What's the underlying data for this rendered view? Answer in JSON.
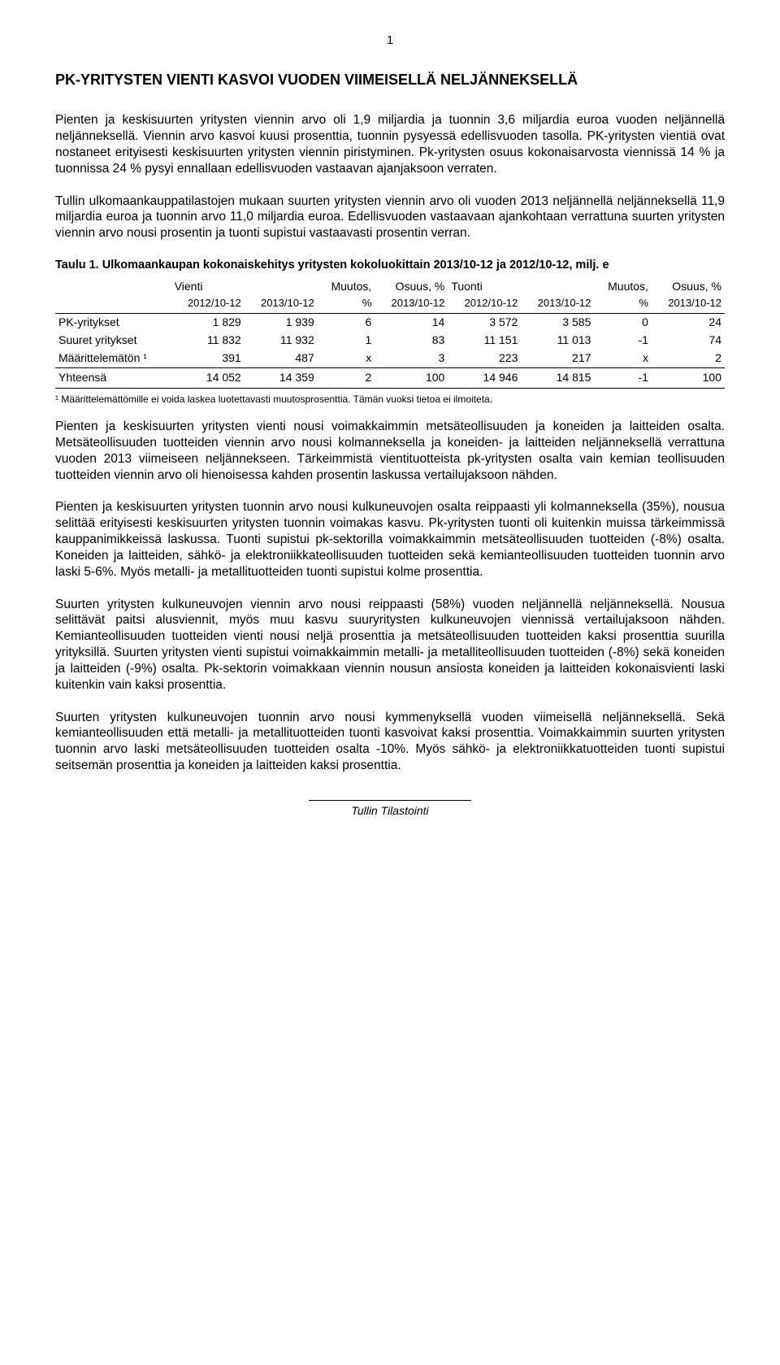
{
  "page_number": "1",
  "title": "PK-YRITYSTEN VIENTI KASVOI VUODEN VIIMEISELLÄ NELJÄNNEKSELLÄ",
  "p1": "Pienten ja keskisuurten yritysten viennin arvo oli 1,9 miljardia ja tuonnin 3,6 miljardia euroa vuoden neljännellä neljänneksellä. Viennin arvo kasvoi kuusi prosenttia, tuonnin pysyessä edellisvuoden tasolla. PK-yritysten vientiä ovat nostaneet erityisesti keskisuurten yritysten viennin piristyminen. Pk-yritysten osuus kokonaisarvosta viennissä 14 % ja tuonnissa 24 % pysyi ennallaan edellisvuoden vastaavan ajanjaksoon verraten.",
  "p2": "Tullin ulkomaankauppatilastojen mukaan suurten yritysten viennin arvo oli vuoden 2013 neljännellä neljänneksellä 11,9 miljardia euroa ja tuonnin arvo 11,0 miljardia euroa. Edellisvuoden vastaavaan ajankohtaan verrattuna suurten yritysten viennin arvo nousi prosentin ja tuonti supistui vastaavasti prosentin verran.",
  "table": {
    "title": "Taulu 1. Ulkomaankaupan kokonaiskehitys yritysten kokoluokittain 2013/10-12 ja 2012/10-12, milj. e",
    "group_headers": [
      "",
      "Vienti",
      "",
      "Muutos,",
      "Osuus, %",
      "Tuonti",
      "",
      "Muutos,",
      "Osuus, %"
    ],
    "sub_headers": [
      "",
      "2012/10-12",
      "2013/10-12",
      "%",
      "2013/10-12",
      "2012/10-12",
      "2013/10-12",
      "%",
      "2013/10-12"
    ],
    "rows": [
      [
        "PK-yritykset",
        "1 829",
        "1 939",
        "6",
        "14",
        "3 572",
        "3 585",
        "0",
        "24"
      ],
      [
        "Suuret yritykset",
        "11 832",
        "11 932",
        "1",
        "83",
        "11 151",
        "11 013",
        "-1",
        "74"
      ],
      [
        "Määrittelemätön ¹",
        "391",
        "487",
        "x",
        "3",
        "223",
        "217",
        "x",
        "2"
      ],
      [
        "Yhteensä",
        "14 052",
        "14 359",
        "2",
        "100",
        "14 946",
        "14 815",
        "-1",
        "100"
      ]
    ]
  },
  "footnote": "¹ Määrittelemättömille ei voida laskea luotettavasti muutosprosenttia. Tämän vuoksi tietoa ei ilmoiteta.",
  "p3": "Pienten ja keskisuurten yritysten vienti nousi voimakkaimmin metsäteollisuuden ja koneiden ja laitteiden osalta. Metsäteollisuuden tuotteiden viennin arvo nousi kolmanneksella ja koneiden- ja laitteiden neljänneksellä verrattuna vuoden 2013 viimeiseen neljännekseen. Tärkeimmistä vientituotteista pk-yritysten osalta vain kemian teollisuuden tuotteiden viennin arvo oli hienoisessa kahden prosentin laskussa vertailujaksoon nähden.",
  "p4": "Pienten ja keskisuurten yritysten tuonnin arvo nousi kulkuneuvojen osalta reippaasti yli kolmanneksella (35%), nousua selittää erityisesti keskisuurten yritysten tuonnin voimakas kasvu. Pk-yritysten tuonti oli kuitenkin muissa tärkeimmissä kauppanimikkeissä laskussa. Tuonti supistui pk-sektorilla voimakkaimmin metsäteollisuuden tuotteiden (-8%) osalta. Koneiden ja laitteiden, sähkö- ja elektroniikkateollisuuden tuotteiden sekä kemianteollisuuden tuotteiden tuonnin arvo laski 5-6%. Myös metalli- ja metallituotteiden tuonti supistui kolme prosenttia.",
  "p5": "Suurten yritysten kulkuneuvojen viennin arvo nousi reippaasti (58%) vuoden neljännellä neljänneksellä. Nousua selittävät paitsi alusviennit, myös muu kasvu suuryritysten kulkuneuvojen viennissä vertailujaksoon nähden. Kemianteollisuuden tuotteiden vienti nousi neljä prosenttia ja metsäteollisuuden tuotteiden kaksi prosenttia suurilla yrityksillä. Suurten yritysten vienti supistui voimakkaimmin metalli- ja metalliteollisuuden tuotteiden (-8%) sekä koneiden ja laitteiden (-9%) osalta. Pk-sektorin voimakkaan viennin nousun ansiosta koneiden ja laitteiden kokonaisvienti laski kuitenkin vain kaksi prosenttia.",
  "p6": "Suurten yritysten kulkuneuvojen tuonnin arvo nousi kymmenyksellä vuoden viimeisellä neljänneksellä. Sekä kemianteollisuuden että metalli- ja metallituotteiden tuonti kasvoivat kaksi prosenttia. Voimakkaimmin suurten yritysten tuonnin arvo laski metsäteollisuuden tuotteiden osalta -10%. Myös sähkö- ja elektroniikkatuotteiden tuonti supistui seitsemän prosenttia ja koneiden ja laitteiden kaksi prosenttia.",
  "footer": "Tullin Tilastointi"
}
